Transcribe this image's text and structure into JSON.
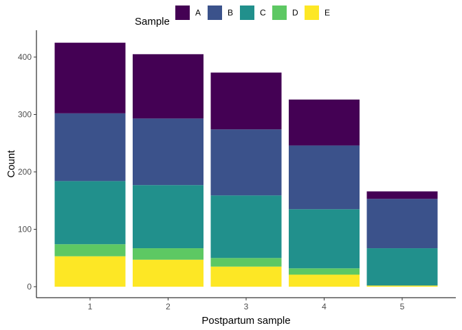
{
  "chart_data": {
    "type": "bar",
    "stacked": true,
    "xlabel": "Postpartum sample",
    "ylabel": "Count",
    "categories": [
      "1",
      "2",
      "3",
      "4",
      "5"
    ],
    "ylim": [
      0,
      440
    ],
    "yticks": [
      0,
      100,
      200,
      300,
      400
    ],
    "grid": false,
    "legend": {
      "title": "Sample",
      "placement": "top"
    },
    "stack_order_bottom_to_top": [
      "E",
      "D",
      "C",
      "B",
      "A"
    ],
    "series": [
      {
        "name": "A",
        "color": "#440154",
        "values": [
          123,
          112,
          99,
          80,
          13
        ]
      },
      {
        "name": "B",
        "color": "#3B528B",
        "values": [
          118,
          116,
          115,
          111,
          86
        ]
      },
      {
        "name": "C",
        "color": "#21908C",
        "values": [
          110,
          110,
          109,
          103,
          65
        ]
      },
      {
        "name": "D",
        "color": "#5DC863",
        "values": [
          21,
          20,
          15,
          11,
          0
        ]
      },
      {
        "name": "E",
        "color": "#FDE725",
        "values": [
          53,
          47,
          35,
          21,
          2
        ]
      }
    ]
  }
}
